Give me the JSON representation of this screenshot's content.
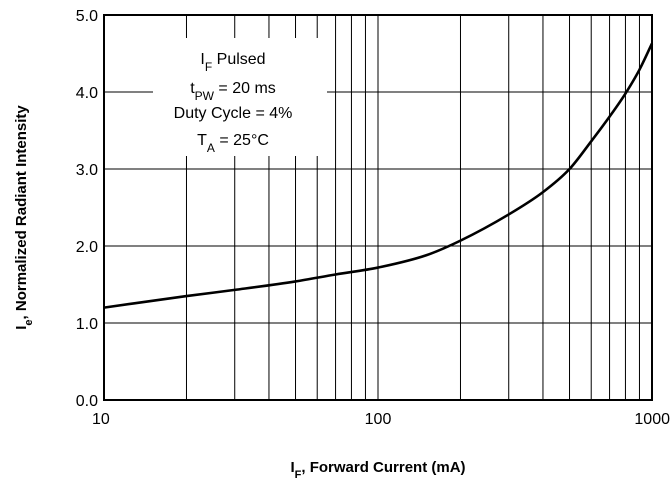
{
  "chart_data": {
    "type": "line",
    "x_scale": "log",
    "xlim": [
      10,
      1000
    ],
    "ylim": [
      0,
      5
    ],
    "x_ticks": [
      "10",
      "100",
      "1000"
    ],
    "y_ticks": [
      "0.0",
      "1.0",
      "2.0",
      "3.0",
      "4.0",
      "5.0"
    ],
    "grid": true,
    "xlabel": {
      "main": "I",
      "sub": "F",
      "rest": ", Forward Current (mA)"
    },
    "ylabel": {
      "main": "I",
      "sub": "e",
      "rest": ", Normalized Radiant Intensity"
    },
    "annotation": [
      {
        "main": "I",
        "sub": "F",
        "rest": " Pulsed"
      },
      {
        "main": "t",
        "sub": "PW",
        "rest": " = 20 ms"
      },
      {
        "main": "Duty Cycle = 4%",
        "sub": "",
        "rest": ""
      },
      {
        "main": "T",
        "sub": "A",
        "rest": " = 25°C"
      }
    ],
    "series": [
      {
        "x": [
          10,
          20,
          30,
          50,
          70,
          100,
          150,
          200,
          300,
          400,
          500,
          600,
          700,
          800,
          900,
          1000
        ],
        "y": [
          1.2,
          1.35,
          1.43,
          1.54,
          1.63,
          1.72,
          1.88,
          2.07,
          2.41,
          2.7,
          3.0,
          3.36,
          3.68,
          3.98,
          4.29,
          4.63
        ]
      }
    ]
  }
}
